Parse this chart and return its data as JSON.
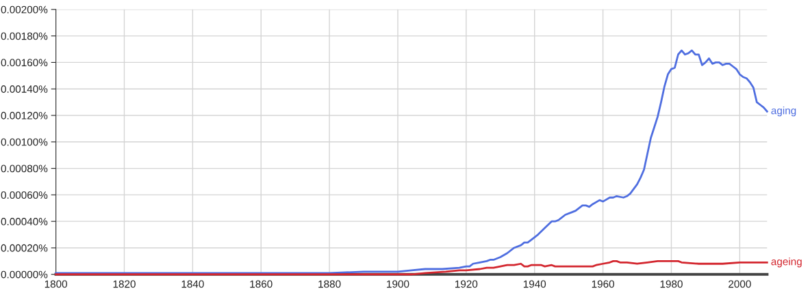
{
  "chart_data": {
    "type": "line",
    "xlim": [
      1800,
      2008
    ],
    "xticks": [
      1800,
      1820,
      1840,
      1860,
      1880,
      1900,
      1920,
      1940,
      1960,
      1980,
      2000
    ],
    "ylim": [
      0,
      0.002
    ],
    "yticks": [
      {
        "value": 0,
        "label": "0.00000%"
      },
      {
        "value": 0.0002,
        "label": "0.00020%"
      },
      {
        "value": 0.0004,
        "label": "0.00040%"
      },
      {
        "value": 0.0006,
        "label": "0.00060%"
      },
      {
        "value": 0.0008,
        "label": "0.00080%"
      },
      {
        "value": 0.001,
        "label": "0.00100%"
      },
      {
        "value": 0.0012,
        "label": "0.00120%"
      },
      {
        "value": 0.0014,
        "label": "0.00140%"
      },
      {
        "value": 0.0016,
        "label": "0.00160%"
      },
      {
        "value": 0.0018,
        "label": "0.00180%"
      },
      {
        "value": 0.002,
        "label": "0.00200%"
      }
    ],
    "grid": true,
    "legend": false,
    "series": [
      {
        "name": "aging",
        "color": "#4f6ee0",
        "x": [
          1800,
          1810,
          1820,
          1860,
          1870,
          1880,
          1890,
          1900,
          1904,
          1908,
          1913,
          1918,
          1920,
          1921,
          1922,
          1924,
          1926,
          1927,
          1928,
          1929,
          1930,
          1932,
          1934,
          1936,
          1937,
          1938,
          1939,
          1941,
          1943,
          1945,
          1946,
          1947,
          1948,
          1949,
          1951,
          1952,
          1954,
          1955,
          1956,
          1957,
          1959,
          1960,
          1962,
          1963,
          1964,
          1966,
          1967,
          1968,
          1970,
          1971,
          1972,
          1973,
          1974,
          1975,
          1976,
          1977,
          1978,
          1979,
          1980,
          1981,
          1982,
          1983,
          1984,
          1985,
          1986,
          1987,
          1988,
          1989,
          1990,
          1991,
          1992,
          1993,
          1994,
          1995,
          1996,
          1997,
          1998,
          1999,
          2000,
          2001,
          2002,
          2003,
          2004,
          2005,
          2006,
          2007,
          2008
        ],
        "values": [
          1e-05,
          1e-05,
          1e-05,
          1e-05,
          1e-05,
          1e-05,
          2e-05,
          2e-05,
          3e-05,
          4e-05,
          4e-05,
          5e-05,
          6e-05,
          6e-05,
          8e-05,
          9e-05,
          0.0001,
          0.00011,
          0.00011,
          0.00012,
          0.00013,
          0.00016,
          0.0002,
          0.00022,
          0.00024,
          0.00024,
          0.00026,
          0.0003,
          0.00035,
          0.0004,
          0.0004,
          0.00041,
          0.00043,
          0.00045,
          0.00047,
          0.00048,
          0.00052,
          0.00052,
          0.00051,
          0.00053,
          0.00056,
          0.00055,
          0.00058,
          0.00058,
          0.00059,
          0.00058,
          0.00059,
          0.00061,
          0.00068,
          0.00073,
          0.00079,
          0.00091,
          0.00103,
          0.00111,
          0.00119,
          0.0013,
          0.00142,
          0.00151,
          0.00155,
          0.00156,
          0.00166,
          0.00169,
          0.00166,
          0.00167,
          0.00169,
          0.00166,
          0.00166,
          0.00158,
          0.0016,
          0.00163,
          0.00159,
          0.0016,
          0.0016,
          0.00158,
          0.00159,
          0.00159,
          0.00157,
          0.00155,
          0.00151,
          0.00149,
          0.00148,
          0.00145,
          0.00141,
          0.0013,
          0.00128,
          0.00126,
          0.00123
        ]
      },
      {
        "name": "ageing",
        "color": "#d3262e",
        "x": [
          1800,
          1820,
          1840,
          1860,
          1880,
          1900,
          1904,
          1908,
          1914,
          1918,
          1920,
          1924,
          1926,
          1928,
          1930,
          1932,
          1934,
          1936,
          1937,
          1938,
          1939,
          1941,
          1942,
          1943,
          1945,
          1946,
          1949,
          1951,
          1953,
          1955,
          1957,
          1958,
          1960,
          1962,
          1963,
          1964,
          1965,
          1967,
          1970,
          1973,
          1976,
          1980,
          1982,
          1983,
          1988,
          1990,
          1995,
          2000,
          2004,
          2008
        ],
        "values": [
          0,
          0,
          0,
          0,
          0,
          0,
          0,
          1e-05,
          2e-05,
          3e-05,
          3e-05,
          4e-05,
          5e-05,
          5e-05,
          6e-05,
          7e-05,
          7e-05,
          8e-05,
          6e-05,
          6e-05,
          7e-05,
          7e-05,
          7e-05,
          6e-05,
          7e-05,
          6e-05,
          6e-05,
          6e-05,
          6e-05,
          6e-05,
          6e-05,
          7e-05,
          8e-05,
          9e-05,
          0.0001,
          0.0001,
          9e-05,
          9e-05,
          8e-05,
          9e-05,
          0.0001,
          0.0001,
          0.0001,
          9e-05,
          8e-05,
          8e-05,
          8e-05,
          9e-05,
          9e-05,
          9e-05
        ]
      }
    ]
  }
}
